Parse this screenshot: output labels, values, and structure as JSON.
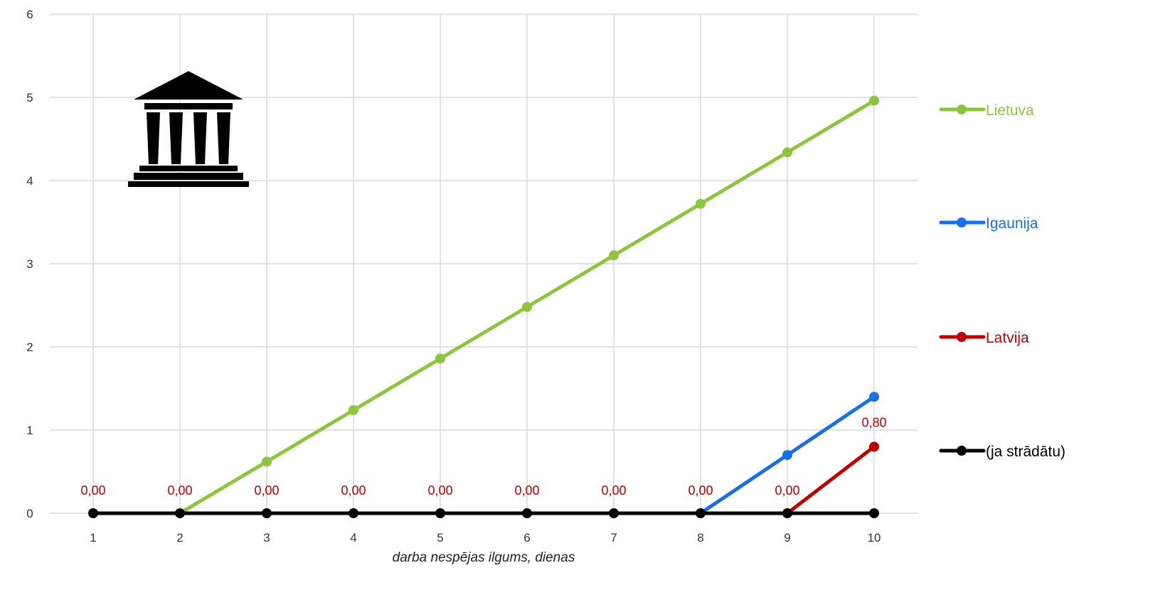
{
  "chart_data": {
    "type": "line",
    "x": [
      1,
      2,
      3,
      4,
      5,
      6,
      7,
      8,
      9,
      10
    ],
    "xlabel": "darba nespējas ilgums, dienas",
    "ylabel": "",
    "ylim": [
      0,
      6
    ],
    "yticks": [
      "0",
      "1",
      "2",
      "3",
      "4",
      "5",
      "6"
    ],
    "xticks": [
      "1",
      "2",
      "3",
      "4",
      "5",
      "6",
      "7",
      "8",
      "9",
      "10"
    ],
    "grid": true,
    "legend_position": "right",
    "series": [
      {
        "name": "Lietuva",
        "color": "#8cc63f",
        "values": [
          null,
          0,
          0.62,
          1.24,
          1.86,
          2.48,
          3.1,
          3.72,
          4.34,
          4.96
        ]
      },
      {
        "name": "Igaunija",
        "color": "#1a6fe8",
        "values": [
          null,
          null,
          null,
          null,
          null,
          null,
          null,
          0,
          0.7,
          1.4
        ]
      },
      {
        "name": "Latvija",
        "color": "#c00000",
        "values": [
          null,
          null,
          null,
          null,
          null,
          null,
          null,
          null,
          0,
          0.8
        ]
      },
      {
        "name": "(ja strādātu)",
        "color": "#000000",
        "values": [
          0,
          0,
          0,
          0,
          0,
          0,
          0,
          0,
          0,
          0
        ]
      }
    ],
    "data_labels": {
      "series": "Latvija",
      "color": "#c00000",
      "items": [
        {
          "x": 1,
          "y": 0,
          "text": "0,00"
        },
        {
          "x": 2,
          "y": 0,
          "text": "0,00"
        },
        {
          "x": 3,
          "y": 0,
          "text": "0,00"
        },
        {
          "x": 4,
          "y": 0,
          "text": "0,00"
        },
        {
          "x": 5,
          "y": 0,
          "text": "0,00"
        },
        {
          "x": 6,
          "y": 0,
          "text": "0,00"
        },
        {
          "x": 7,
          "y": 0,
          "text": "0,00"
        },
        {
          "x": 8,
          "y": 0,
          "text": "0,00"
        },
        {
          "x": 9,
          "y": 0,
          "text": "0,00"
        },
        {
          "x": 10,
          "y": 0.8,
          "text": "0,80"
        }
      ]
    }
  },
  "icons": {
    "overlay": "government-building-icon"
  }
}
